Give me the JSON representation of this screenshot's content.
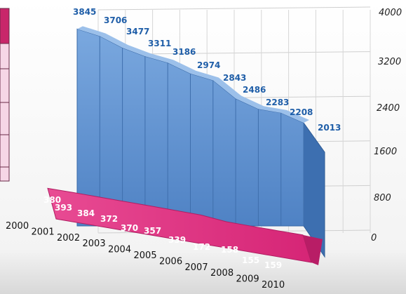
{
  "chart_data": {
    "type": "area",
    "years": [
      "2000",
      "2001",
      "2002",
      "2003",
      "2004",
      "2005",
      "2006",
      "2007",
      "2008",
      "2009",
      "2010"
    ],
    "y_ticks": [
      "0",
      "800",
      "1600",
      "2400",
      "3200",
      "4000"
    ],
    "ylim": [
      0,
      4000
    ],
    "series": [
      {
        "name": "",
        "color": "#5b8fd0",
        "values": [
          3845,
          3706,
          3477,
          3311,
          3186,
          2974,
          2843,
          2486,
          2283,
          2208,
          2013
        ]
      },
      {
        "name": "",
        "color": "#e0307e",
        "values": [
          380,
          393,
          384,
          372,
          370,
          357,
          339,
          172,
          158,
          155,
          159
        ]
      }
    ],
    "grid": true,
    "legend": "none"
  },
  "colors": {
    "blue_label": "#1f5ea8",
    "pink_label": "#ffffff",
    "side_legend_header": "#c8266a",
    "side_legend_rows": "#f6d6e6"
  }
}
